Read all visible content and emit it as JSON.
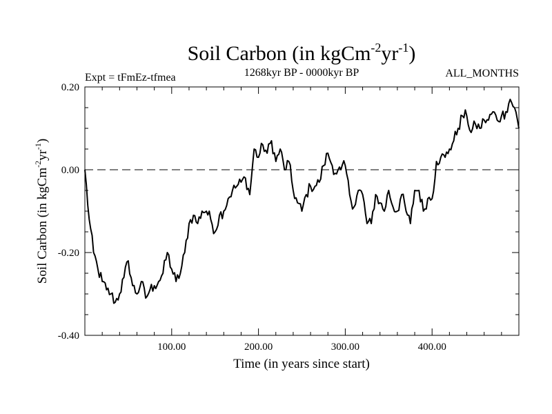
{
  "chart_data": {
    "type": "line",
    "title": "Soil Carbon (in kgCm",
    "title_sup1": "-2",
    "title_mid": "yr",
    "title_sup2": "-1",
    "title_end": ")",
    "subtitle": "1268kyr BP - 0000kyr BP",
    "expt_label": "Expt = tFmEz-tfmea",
    "months_label": "ALL_MONTHS",
    "xlabel": "Time (in years since start)",
    "ylabel": "Soil Carbon (in kgCm",
    "ylabel_sup1": "-2",
    "ylabel_mid": "yr",
    "ylabel_sup2": "-1",
    "ylabel_end": ")",
    "xlim": [
      0,
      500
    ],
    "ylim": [
      -0.4,
      0.2
    ],
    "xticks": [
      100,
      200,
      300,
      400
    ],
    "xtick_labels": [
      "100.00",
      "200.00",
      "300.00",
      "400.00"
    ],
    "yticks": [
      0.2,
      0.0,
      -0.2,
      -0.4
    ],
    "ytick_labels": [
      "0.20",
      "0.00",
      "-0.20",
      "-0.40"
    ],
    "zero_line": "dashed",
    "series": [
      {
        "name": "Soil Carbon",
        "x": [
          0,
          5,
          10,
          15,
          20,
          25,
          30,
          35,
          40,
          45,
          50,
          55,
          60,
          65,
          70,
          75,
          80,
          85,
          90,
          95,
          100,
          105,
          110,
          115,
          120,
          125,
          130,
          135,
          140,
          145,
          150,
          155,
          160,
          165,
          170,
          175,
          180,
          185,
          190,
          195,
          200,
          205,
          210,
          215,
          220,
          225,
          230,
          235,
          240,
          245,
          250,
          255,
          260,
          265,
          270,
          275,
          280,
          285,
          290,
          295,
          300,
          305,
          310,
          315,
          320,
          325,
          330,
          335,
          340,
          345,
          350,
          355,
          360,
          365,
          370,
          375,
          380,
          385,
          390,
          395,
          400,
          405,
          410,
          415,
          420,
          425,
          430,
          435,
          440,
          445,
          450,
          455,
          460,
          465,
          470,
          475,
          480,
          485,
          490,
          495,
          500
        ],
        "values": [
          0.0,
          -0.12,
          -0.2,
          -0.24,
          -0.27,
          -0.29,
          -0.3,
          -0.32,
          -0.3,
          -0.26,
          -0.22,
          -0.28,
          -0.3,
          -0.27,
          -0.31,
          -0.29,
          -0.28,
          -0.27,
          -0.25,
          -0.2,
          -0.24,
          -0.27,
          -0.25,
          -0.2,
          -0.13,
          -0.11,
          -0.13,
          -0.1,
          -0.1,
          -0.12,
          -0.15,
          -0.11,
          -0.1,
          -0.07,
          -0.05,
          -0.04,
          -0.03,
          -0.02,
          -0.06,
          0.05,
          0.03,
          0.06,
          0.04,
          0.07,
          0.02,
          0.05,
          0.0,
          0.02,
          -0.05,
          -0.08,
          -0.1,
          -0.06,
          -0.04,
          -0.04,
          -0.03,
          0.01,
          0.04,
          0.01,
          -0.01,
          0.0,
          0.01,
          -0.06,
          -0.09,
          -0.05,
          -0.06,
          -0.13,
          -0.13,
          -0.06,
          -0.08,
          -0.1,
          -0.05,
          -0.09,
          -0.1,
          -0.06,
          -0.1,
          -0.13,
          -0.05,
          -0.05,
          -0.1,
          -0.07,
          -0.07,
          0.02,
          0.03,
          0.03,
          0.05,
          0.07,
          0.1,
          0.13,
          0.13,
          0.09,
          0.11,
          0.1,
          0.12,
          0.12,
          0.14,
          0.12,
          0.13,
          0.14,
          0.17,
          0.15,
          0.1
        ]
      }
    ]
  }
}
